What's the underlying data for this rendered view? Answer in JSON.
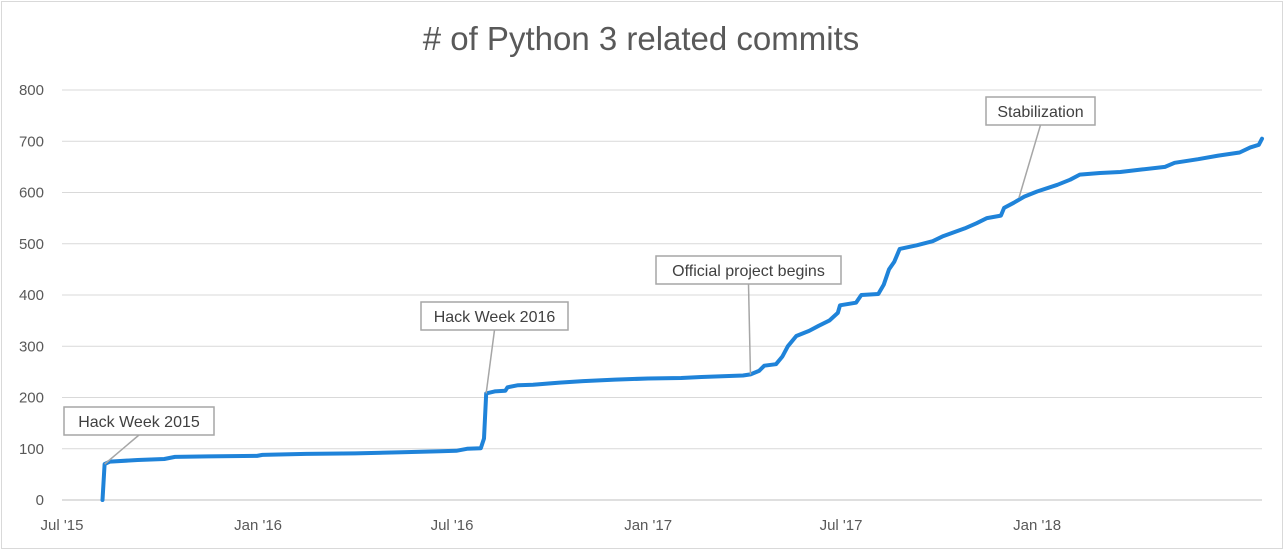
{
  "chart_data": {
    "type": "line",
    "title": "# of Python 3 related commits",
    "xlabel": "",
    "ylabel": "",
    "ylim": [
      0,
      800
    ],
    "yticks": [
      0,
      100,
      200,
      300,
      400,
      500,
      600,
      700,
      800
    ],
    "xlim": [
      "2015-07-01",
      "2018-07-31"
    ],
    "xticks": [
      {
        "date": "2015-07-01",
        "label": "Jul '15"
      },
      {
        "date": "2016-01-01",
        "label": "Jan '16"
      },
      {
        "date": "2016-07-01",
        "label": "Jul '16"
      },
      {
        "date": "2017-01-01",
        "label": "Jan '17"
      },
      {
        "date": "2017-07-01",
        "label": "Jul '17"
      },
      {
        "date": "2018-01-01",
        "label": "Jan '18"
      }
    ],
    "grid": true,
    "line_color": "#1f83d9",
    "series": [
      {
        "name": "",
        "points": [
          [
            "2015-08-08",
            0
          ],
          [
            "2015-08-10",
            70
          ],
          [
            "2015-08-15",
            75
          ],
          [
            "2015-09-10",
            78
          ],
          [
            "2015-10-05",
            80
          ],
          [
            "2015-10-15",
            84
          ],
          [
            "2015-11-15",
            85
          ],
          [
            "2015-12-31",
            86
          ],
          [
            "2016-01-05",
            88
          ],
          [
            "2016-02-15",
            90
          ],
          [
            "2016-04-01",
            91
          ],
          [
            "2016-05-15",
            93
          ],
          [
            "2016-06-20",
            95
          ],
          [
            "2016-07-05",
            96
          ],
          [
            "2016-07-15",
            100
          ],
          [
            "2016-07-28",
            101
          ],
          [
            "2016-07-31",
            120
          ],
          [
            "2016-08-02",
            208
          ],
          [
            "2016-08-10",
            212
          ],
          [
            "2016-08-20",
            213
          ],
          [
            "2016-08-22",
            220
          ],
          [
            "2016-09-01",
            224
          ],
          [
            "2016-09-15",
            225
          ],
          [
            "2016-10-10",
            229
          ],
          [
            "2016-11-01",
            232
          ],
          [
            "2016-12-01",
            235
          ],
          [
            "2017-01-01",
            237
          ],
          [
            "2017-02-01",
            238
          ],
          [
            "2017-02-20",
            240
          ],
          [
            "2017-03-31",
            243
          ],
          [
            "2017-04-07",
            245
          ],
          [
            "2017-04-15",
            252
          ],
          [
            "2017-04-20",
            262
          ],
          [
            "2017-05-01",
            265
          ],
          [
            "2017-05-07",
            280
          ],
          [
            "2017-05-12",
            300
          ],
          [
            "2017-05-20",
            320
          ],
          [
            "2017-06-01",
            330
          ],
          [
            "2017-06-10",
            340
          ],
          [
            "2017-06-20",
            350
          ],
          [
            "2017-06-28",
            365
          ],
          [
            "2017-06-30",
            380
          ],
          [
            "2017-07-15",
            385
          ],
          [
            "2017-07-20",
            400
          ],
          [
            "2017-08-05",
            402
          ],
          [
            "2017-08-10",
            420
          ],
          [
            "2017-08-15",
            450
          ],
          [
            "2017-08-20",
            465
          ],
          [
            "2017-08-25",
            490
          ],
          [
            "2017-09-10",
            497
          ],
          [
            "2017-09-25",
            505
          ],
          [
            "2017-10-05",
            515
          ],
          [
            "2017-10-25",
            530
          ],
          [
            "2017-11-05",
            540
          ],
          [
            "2017-11-15",
            550
          ],
          [
            "2017-11-28",
            555
          ],
          [
            "2017-12-01",
            570
          ],
          [
            "2017-12-10",
            580
          ],
          [
            "2017-12-20",
            592
          ],
          [
            "2018-01-01",
            602
          ],
          [
            "2018-01-20",
            615
          ],
          [
            "2018-02-01",
            625
          ],
          [
            "2018-02-10",
            635
          ],
          [
            "2018-03-01",
            638
          ],
          [
            "2018-03-20",
            640
          ],
          [
            "2018-04-10",
            645
          ],
          [
            "2018-05-01",
            650
          ],
          [
            "2018-05-10",
            658
          ],
          [
            "2018-06-01",
            665
          ],
          [
            "2018-06-20",
            672
          ],
          [
            "2018-07-10",
            678
          ],
          [
            "2018-07-20",
            688
          ],
          [
            "2018-07-28",
            693
          ],
          [
            "2018-07-31",
            705
          ]
        ]
      }
    ],
    "annotations": [
      {
        "text": "Hack Week 2015",
        "date": "2015-08-10",
        "value": 70
      },
      {
        "text": "Hack Week 2016",
        "date": "2016-08-02",
        "value": 208
      },
      {
        "text": "Official project begins",
        "date": "2017-04-07",
        "value": 245
      },
      {
        "text": "Stabilization",
        "date": "2017-12-15",
        "value": 590
      }
    ]
  }
}
